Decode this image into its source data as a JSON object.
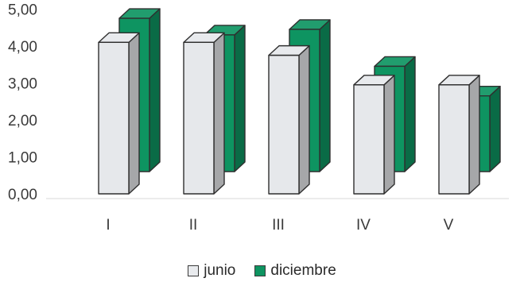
{
  "chart_data": {
    "type": "bar",
    "style": "3d-clustered",
    "categories": [
      "I",
      "II",
      "III",
      "IV",
      "V"
    ],
    "series": [
      {
        "name": "junio",
        "values": [
          4.1,
          4.1,
          3.75,
          2.95,
          2.95
        ],
        "color": "#e6e8eb"
      },
      {
        "name": "diciembre",
        "values": [
          4.15,
          3.7,
          3.85,
          2.85,
          2.05
        ],
        "color": "#0e9461"
      }
    ],
    "yticks": [
      "0,00",
      "1,00",
      "2,00",
      "3,00",
      "4,00",
      "5,00"
    ],
    "ylim": [
      0,
      5
    ],
    "grid": false,
    "legend_position": "bottom"
  }
}
